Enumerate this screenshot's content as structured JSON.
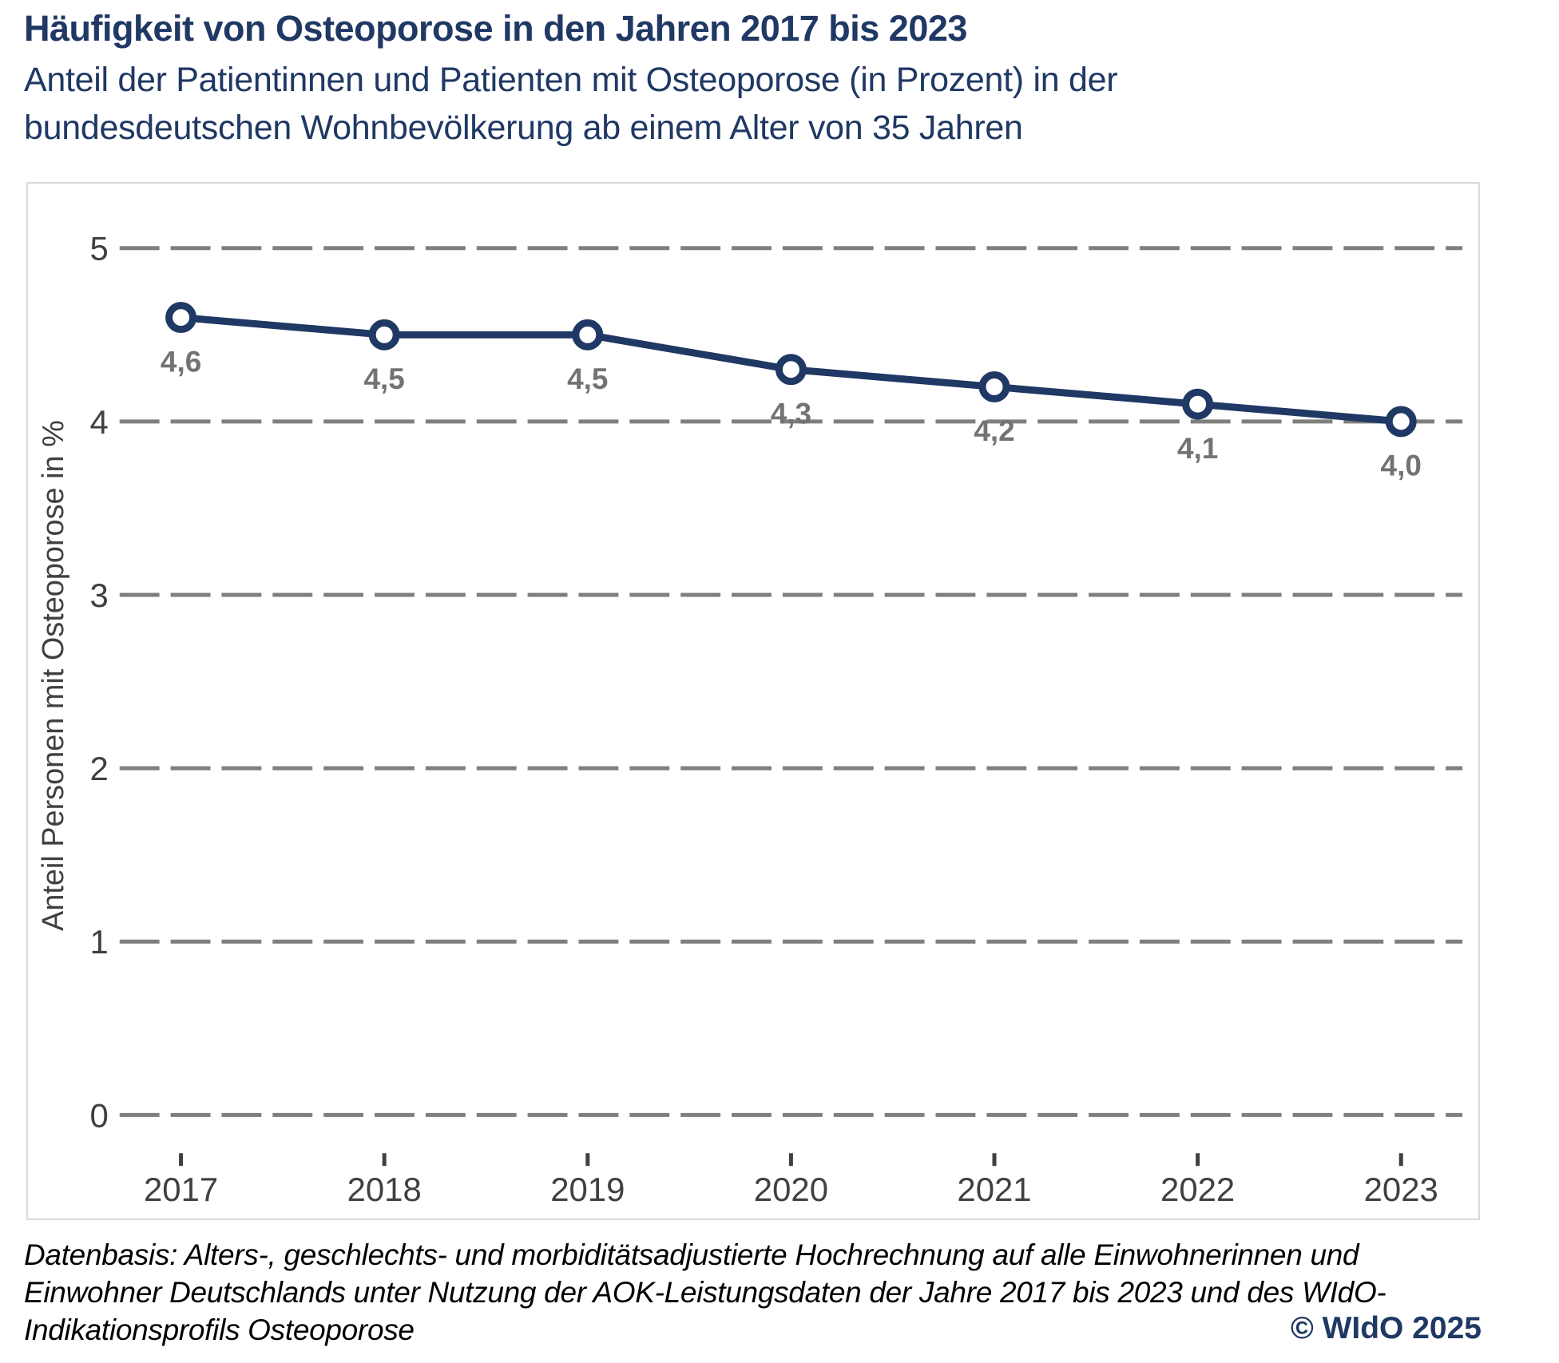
{
  "page": {
    "title": "Häufigkeit von Osteoporose in den Jahren 2017 bis 2023",
    "subtitle_lines": [
      "Anteil der Patientinnen und Patienten mit Osteoporose (in Prozent) in der",
      "bundesdeutschen Wohnbevölkerung ab einem Alter von 35 Jahren"
    ],
    "footnote_lines": [
      "Datenbasis: Alters-, geschlechts- und morbiditätsadjustierte Hochrechnung auf alle Einwohnerinnen und",
      "Einwohner Deutschlands unter Nutzung der AOK-Leistungsdaten der Jahre 2017 bis 2023 und des WIdO-",
      "Indikationsprofils Osteoporose"
    ],
    "copyright": "© WIdO 2025"
  },
  "chart_data": {
    "type": "line",
    "title": "Häufigkeit von Osteoporose in den Jahren 2017 bis 2023",
    "categories": [
      "2017",
      "2018",
      "2019",
      "2020",
      "2021",
      "2022",
      "2023"
    ],
    "values": [
      4.6,
      4.5,
      4.5,
      4.3,
      4.2,
      4.1,
      4.0
    ],
    "point_labels": [
      "4,6",
      "4,5",
      "4,5",
      "4,3",
      "4,2",
      "4,1",
      "4,0"
    ],
    "xlabel": "",
    "ylabel": "Anteil Personen mit Osteoporose in %",
    "ylim": [
      0,
      5
    ],
    "yticks": [
      0,
      1,
      2,
      3,
      4,
      5
    ],
    "grid": "horizontal-dashed",
    "legend": "none",
    "marker": "open-circle-white-fill"
  },
  "style": {
    "accent_navy": "#1F3864",
    "line_color": "#1F3864",
    "data_label_gray": "#737373",
    "axis_text_gray": "#404040",
    "gridline_gray": "#7F7F7F",
    "chart_border_gray": "#D9D9D9",
    "footnote_color": "#000000",
    "background": "#FFFFFF"
  }
}
